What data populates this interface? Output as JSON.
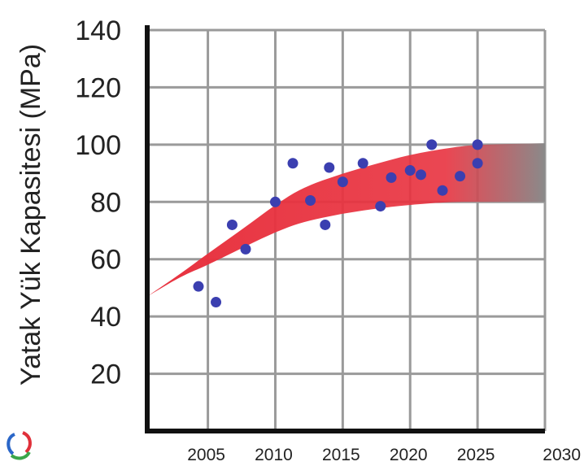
{
  "chart_data": {
    "type": "scatter",
    "ylabel": "Yatak Yük Kapasitesi (MPa)",
    "xlabel": "",
    "xlim": [
      2000.5,
      2030
    ],
    "ylim": [
      0,
      140
    ],
    "x_ticks": [
      "2005",
      "2010",
      "2015",
      "2020",
      "2025",
      "2030"
    ],
    "x_tick_values": [
      2005,
      2010,
      2015,
      2020,
      2025,
      2030
    ],
    "y_ticks": [
      "20",
      "40",
      "60",
      "80",
      "100",
      "120",
      "140"
    ],
    "y_tick_values": [
      20,
      40,
      60,
      80,
      100,
      120,
      140
    ],
    "grid": true,
    "series": [
      {
        "type": "scatter",
        "color": "#3b3fb0",
        "points": [
          [
            2004.3,
            50.5
          ],
          [
            2005.6,
            45
          ],
          [
            2006.8,
            72
          ],
          [
            2007.8,
            63.5
          ],
          [
            2010.0,
            80
          ],
          [
            2011.3,
            93.5
          ],
          [
            2012.6,
            80.5
          ],
          [
            2013.7,
            72
          ],
          [
            2014.0,
            92
          ],
          [
            2015.0,
            87
          ],
          [
            2016.5,
            93.5
          ],
          [
            2017.8,
            78.5
          ],
          [
            2018.6,
            88.5
          ],
          [
            2020.0,
            91
          ],
          [
            2020.8,
            89.5
          ],
          [
            2021.6,
            100
          ],
          [
            2022.4,
            84
          ],
          [
            2023.7,
            89
          ],
          [
            2025.0,
            100
          ],
          [
            2025.0,
            93.5
          ]
        ]
      }
    ],
    "band": {
      "type": "area",
      "color_start": "#e8323f",
      "color_end": "#8a8a8a",
      "upper": [
        [
          2000.5,
          47
        ],
        [
          2003,
          55
        ],
        [
          2005,
          62
        ],
        [
          2008,
          72
        ],
        [
          2010,
          79
        ],
        [
          2012,
          85
        ],
        [
          2015,
          90
        ],
        [
          2018,
          94
        ],
        [
          2020,
          96.5
        ],
        [
          2023,
          99
        ],
        [
          2025,
          100
        ],
        [
          2030,
          100.5
        ]
      ],
      "lower": [
        [
          2000.5,
          47
        ],
        [
          2003,
          54
        ],
        [
          2005,
          58
        ],
        [
          2008,
          65
        ],
        [
          2010,
          69.5
        ],
        [
          2012,
          73
        ],
        [
          2015,
          76
        ],
        [
          2018,
          78
        ],
        [
          2020,
          79
        ],
        [
          2023,
          80
        ],
        [
          2025,
          80
        ],
        [
          2030,
          80
        ]
      ]
    }
  },
  "logo": {
    "icon": "interlocking-rings-logo-icon",
    "colors": [
      "#2a66c8",
      "#e0303a",
      "#3aa64a"
    ]
  }
}
